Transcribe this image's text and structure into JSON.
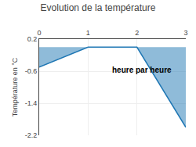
{
  "chart_data": {
    "type": "area",
    "title": "Evolution de la température",
    "xlabel": "heure par heure",
    "ylabel": "Température en °C",
    "x": [
      0,
      1,
      2,
      3
    ],
    "values": [
      -0.5,
      0.0,
      0.0,
      -2.0
    ],
    "xlim": [
      0,
      3
    ],
    "ylim": [
      -2.2,
      0.2
    ],
    "xticks": [
      0,
      1,
      2,
      3
    ],
    "yticks": [
      0.2,
      -0.6,
      -1.4,
      -2.2
    ],
    "grid": true
  }
}
